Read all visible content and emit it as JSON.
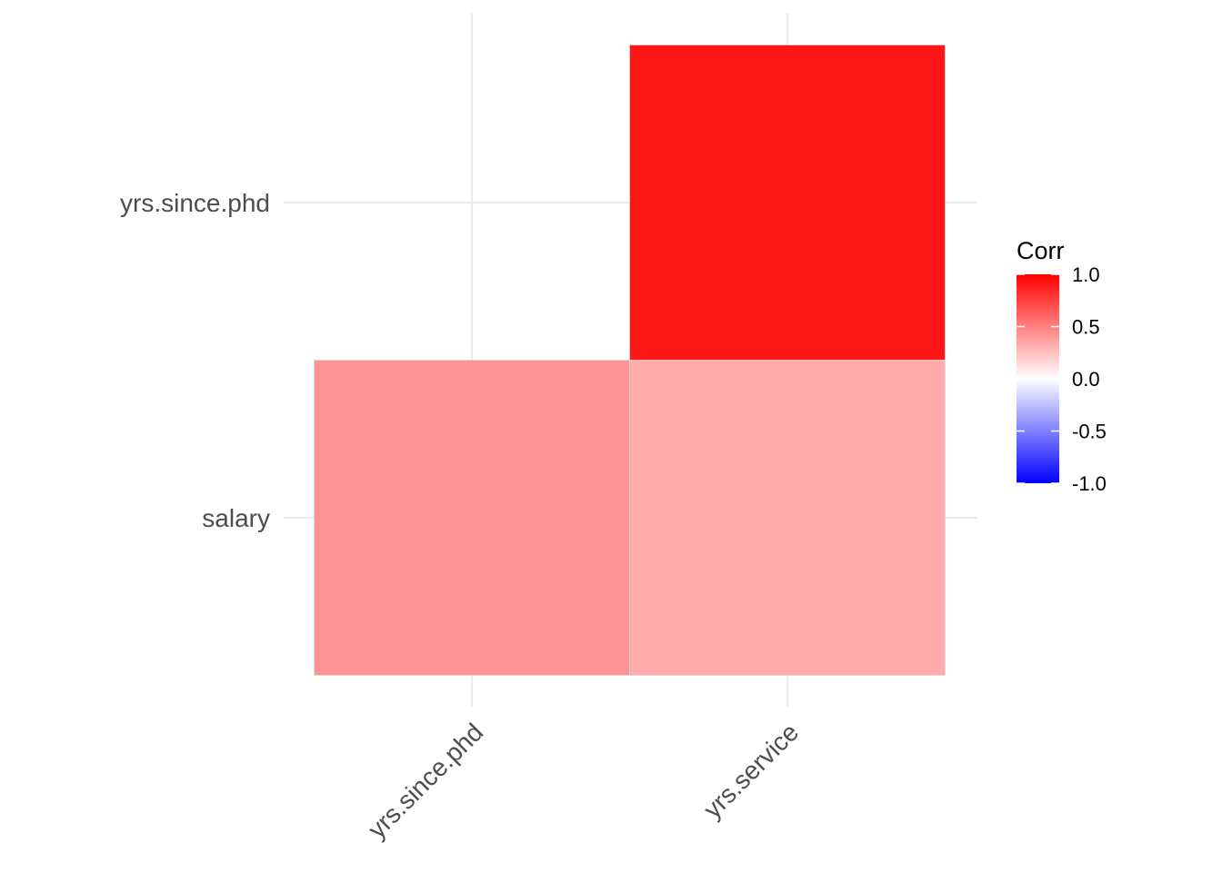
{
  "chart_data": {
    "type": "heatmap",
    "x_categories": [
      "yrs.since.phd",
      "yrs.service"
    ],
    "y_categories": [
      "salary",
      "yrs.since.phd"
    ],
    "cells": [
      {
        "x": "yrs.since.phd",
        "y": "salary",
        "value": 0.42
      },
      {
        "x": "yrs.service",
        "y": "salary",
        "value": 0.33
      },
      {
        "x": "yrs.service",
        "y": "yrs.since.phd",
        "value": 0.91
      }
    ],
    "grid": true,
    "legend": {
      "title": "Corr",
      "position": "right",
      "ticks": [
        1.0,
        0.5,
        0.0,
        -0.5,
        -1.0
      ],
      "tick_labels": [
        "1.0",
        "0.5",
        "0.0",
        "-0.5",
        "-1.0"
      ],
      "colors": {
        "low": "#0000ff",
        "mid": "#ffffff",
        "high": "#ff0000"
      },
      "limits": [
        -1,
        1
      ]
    }
  }
}
